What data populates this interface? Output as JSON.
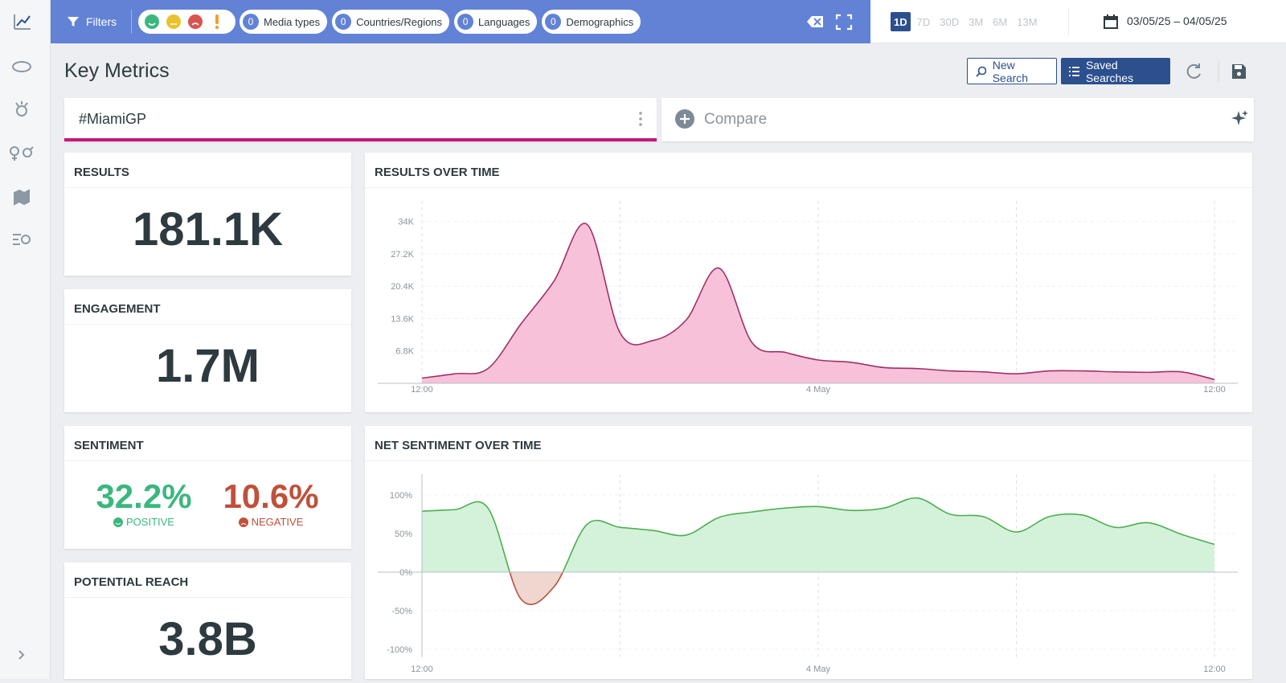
{
  "topbar": {
    "filters_label": "Filters",
    "chips": [
      {
        "count": 0,
        "label": "Media types"
      },
      {
        "count": 0,
        "label": "Countries/Regions"
      },
      {
        "count": 0,
        "label": "Languages"
      },
      {
        "count": 0,
        "label": "Demographics"
      }
    ],
    "ranges": [
      "1D",
      "7D",
      "30D",
      "3M",
      "6M",
      "13M"
    ],
    "date_range": "03/05/25 – 04/05/25"
  },
  "header": {
    "title": "Key Metrics",
    "new_search": "New Search",
    "saved_searches": "Saved Searches"
  },
  "search": {
    "query": "#MiamiGP",
    "compare": "Compare"
  },
  "metrics": {
    "results": {
      "label": "RESULTS",
      "value": "181.1K"
    },
    "engagement": {
      "label": "ENGAGEMENT",
      "value": "1.7M"
    },
    "sentiment": {
      "label": "SENTIMENT",
      "positive": {
        "value": "32.2%",
        "label": "POSITIVE"
      },
      "negative": {
        "value": "10.6%",
        "label": "NEGATIVE"
      }
    },
    "potential_reach": {
      "label": "POTENTIAL REACH",
      "value": "3.8B"
    }
  },
  "chart_data": [
    {
      "type": "area",
      "title": "RESULTS OVER TIME",
      "color": "#a0306a",
      "fill": "#f7c1da",
      "grid": true,
      "categories": [
        "12:00",
        null,
        null,
        null,
        null,
        null,
        null,
        null,
        null,
        null,
        null,
        null,
        "4 May",
        null,
        null,
        null,
        null,
        null,
        null,
        null,
        null,
        null,
        null,
        null,
        "12:00"
      ],
      "values": [
        1100,
        2000,
        3100,
        12500,
        21500,
        33400,
        10600,
        9000,
        13300,
        24200,
        8500,
        6500,
        4900,
        4400,
        3300,
        3100,
        2600,
        2400,
        2000,
        2600,
        2600,
        2400,
        2300,
        2400,
        800
      ],
      "ylim": [
        0,
        38000
      ],
      "yticks": [
        {
          "value": 6800,
          "label": "6.8K"
        },
        {
          "value": 13600,
          "label": "13.6K"
        },
        {
          "value": 20400,
          "label": "20.4K"
        },
        {
          "value": 27200,
          "label": "27.2K"
        },
        {
          "value": 34000,
          "label": "34K"
        }
      ]
    },
    {
      "type": "area",
      "title": "NET SENTIMENT OVER TIME",
      "color": "#4caf50",
      "fill": "#d4f1da",
      "negative_color": "#b5533c",
      "negative_fill": "#efd6cf",
      "grid": true,
      "categories": [
        "12:00",
        null,
        null,
        null,
        null,
        null,
        null,
        null,
        null,
        null,
        null,
        null,
        "4 May",
        null,
        null,
        null,
        null,
        null,
        null,
        null,
        null,
        null,
        null,
        null,
        "12:00"
      ],
      "values": [
        79,
        81,
        83,
        -35,
        -19,
        62,
        58,
        54,
        48,
        71,
        78,
        83,
        85,
        80,
        83,
        96,
        75,
        72,
        52,
        72,
        74,
        58,
        64,
        49,
        36
      ],
      "ylim": [
        -110,
        125
      ],
      "yticks": [
        {
          "value": -100,
          "label": "-100%"
        },
        {
          "value": -50,
          "label": "-50%"
        },
        {
          "value": 0,
          "label": "0%"
        },
        {
          "value": 50,
          "label": "50%"
        },
        {
          "value": 100,
          "label": "100%"
        }
      ]
    }
  ]
}
